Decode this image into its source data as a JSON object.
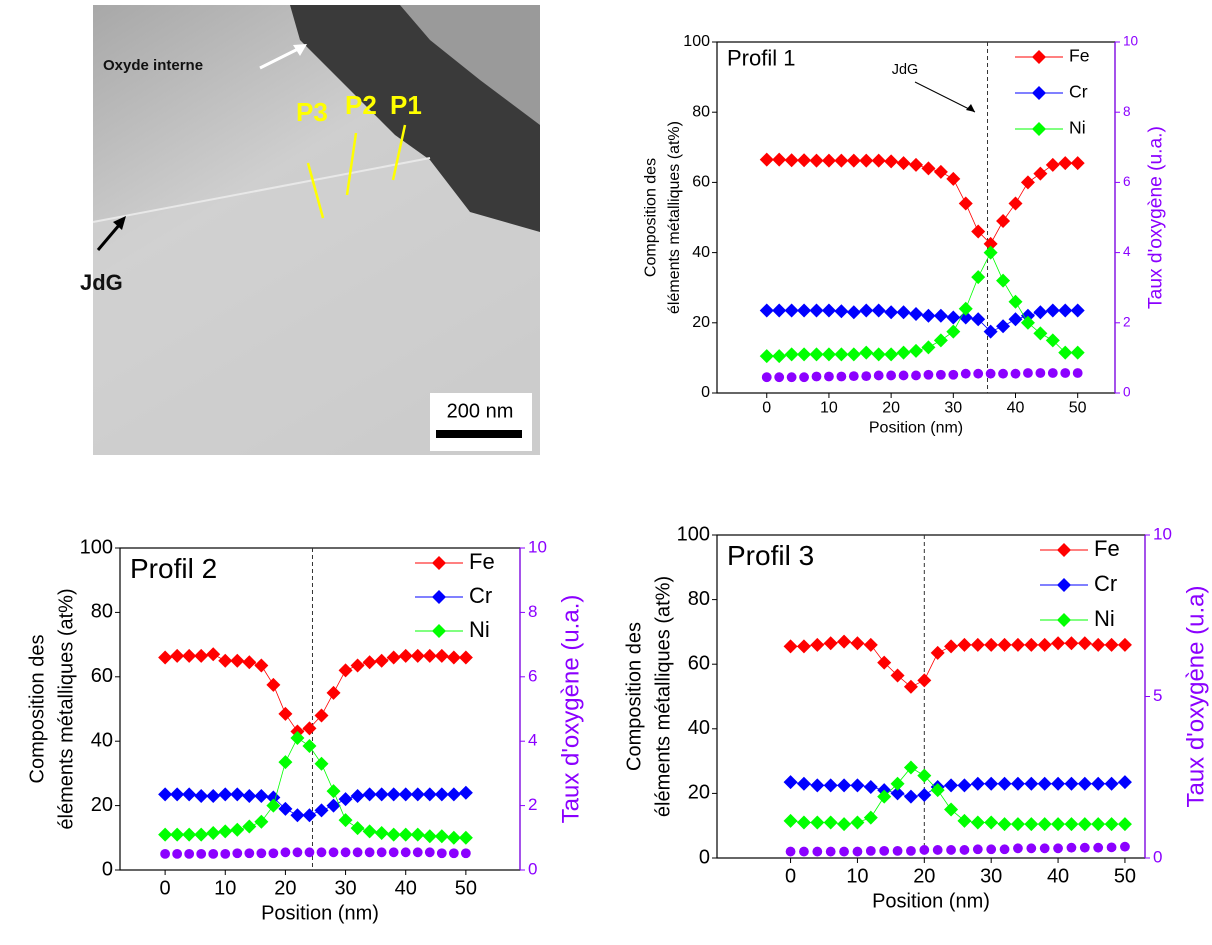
{
  "image": {
    "oxide_label": "Oxyde interne",
    "profiles": [
      "P3",
      "P2",
      "P1"
    ],
    "boundary_label": "JdG",
    "scale_label": "200 nm"
  },
  "chart_data": [
    {
      "type": "line",
      "title": "Profil 1",
      "xlabel": "Position (nm)",
      "ylabel": [
        "Composition des",
        "éléments métalliques (at%)"
      ],
      "y2label": "Taux d'oxygène (u.a.)",
      "annotation": "JdG",
      "jdg_x": 35.5,
      "legend": "upper right",
      "xlim": [
        -8,
        56
      ],
      "xticks": [
        0,
        10,
        20,
        30,
        40,
        50
      ],
      "ylim": [
        0,
        100
      ],
      "yticks": [
        0,
        20,
        40,
        60,
        80,
        100
      ],
      "y2lim": [
        0,
        10
      ],
      "y2ticks": [
        0,
        2,
        4,
        6,
        8,
        10
      ],
      "x": [
        0,
        2,
        4,
        6,
        8,
        10,
        12,
        14,
        16,
        18,
        20,
        22,
        24,
        26,
        28,
        30,
        32,
        34,
        36,
        38,
        40,
        42,
        44,
        46,
        48,
        50
      ],
      "series": [
        {
          "name": "Fe",
          "color": "#ff0000",
          "values": [
            66.5,
            66.5,
            66.3,
            66.3,
            66.2,
            66.2,
            66.2,
            66.2,
            66.2,
            66.2,
            66,
            65.5,
            65,
            64,
            63,
            61,
            54,
            46,
            42.5,
            49,
            54,
            60,
            62.5,
            65,
            65.5,
            65.5
          ]
        },
        {
          "name": "Cr",
          "color": "#0000ff",
          "values": [
            23.5,
            23.5,
            23.5,
            23.5,
            23.5,
            23.5,
            23.3,
            23,
            23.5,
            23.5,
            23,
            23,
            22.5,
            22,
            22,
            21.5,
            21.5,
            21,
            17.5,
            19,
            21,
            22,
            23,
            23.5,
            23.5,
            23.5
          ]
        },
        {
          "name": "Ni",
          "color": "#00ff00",
          "values": [
            10.5,
            10.5,
            11,
            11,
            11,
            11,
            11,
            11,
            11.5,
            11,
            11,
            11.5,
            12,
            13,
            15,
            17.5,
            24,
            33,
            40,
            32,
            26,
            20,
            17,
            15,
            11.5,
            11.5
          ]
        },
        {
          "color": "#8b00ff",
          "axis": "y2",
          "values": [
            0.45,
            0.45,
            0.45,
            0.45,
            0.47,
            0.47,
            0.47,
            0.48,
            0.48,
            0.5,
            0.5,
            0.5,
            0.5,
            0.52,
            0.52,
            0.52,
            0.55,
            0.55,
            0.55,
            0.55,
            0.55,
            0.57,
            0.57,
            0.57,
            0.57,
            0.57
          ]
        }
      ]
    },
    {
      "type": "line",
      "title": "Profil 2",
      "xlabel": "Position (nm)",
      "ylabel": [
        "Composition des",
        "éléments métalliques (at%)"
      ],
      "y2label": "Taux d'oxygène (u.a.)",
      "jdg_x": 24.5,
      "legend": "upper right",
      "xlim": [
        -7.5,
        59
      ],
      "xticks": [
        0,
        10,
        20,
        30,
        40,
        50
      ],
      "ylim": [
        0,
        100
      ],
      "yticks": [
        0,
        20,
        40,
        60,
        80,
        100
      ],
      "y2lim": [
        0,
        10
      ],
      "y2ticks": [
        0,
        2,
        4,
        6,
        8,
        10
      ],
      "x": [
        0,
        2,
        4,
        6,
        8,
        10,
        12,
        14,
        16,
        18,
        20,
        22,
        24,
        26,
        28,
        30,
        32,
        34,
        36,
        38,
        40,
        42,
        44,
        46,
        48,
        50
      ],
      "series": [
        {
          "name": "Fe",
          "color": "#ff0000",
          "values": [
            66,
            66.5,
            66.5,
            66.5,
            67,
            65,
            65,
            64.5,
            63.5,
            57.5,
            48.5,
            43,
            44,
            48,
            55,
            62,
            63.5,
            64.5,
            65,
            66,
            66.5,
            66.5,
            66.5,
            66.5,
            66,
            66
          ]
        },
        {
          "name": "Cr",
          "color": "#0000ff",
          "values": [
            23.5,
            23.5,
            23.5,
            23,
            23,
            23.5,
            23.5,
            23,
            23,
            22.5,
            19,
            17,
            17,
            18.5,
            20,
            22,
            23,
            23.5,
            23.5,
            23.5,
            23.5,
            23.5,
            23.5,
            23.5,
            23.5,
            24
          ]
        },
        {
          "name": "Ni",
          "color": "#00ff00",
          "values": [
            11,
            11,
            11,
            11,
            11.5,
            12,
            12.5,
            13.5,
            15,
            20,
            33.5,
            41,
            38.5,
            33,
            24.5,
            15.5,
            13,
            12,
            11.5,
            11,
            11,
            11,
            10.5,
            10.5,
            10,
            10
          ]
        },
        {
          "color": "#8b00ff",
          "axis": "y2",
          "values": [
            0.5,
            0.5,
            0.5,
            0.5,
            0.5,
            0.5,
            0.52,
            0.52,
            0.52,
            0.52,
            0.55,
            0.55,
            0.55,
            0.55,
            0.55,
            0.55,
            0.55,
            0.55,
            0.55,
            0.55,
            0.55,
            0.55,
            0.55,
            0.52,
            0.52,
            0.52
          ]
        }
      ]
    },
    {
      "type": "line",
      "title": "Profil 3",
      "xlabel": "Position (nm)",
      "ylabel": [
        "Composition des",
        "éléments métalliques (at%)"
      ],
      "y2label": "Taux d'oxygène (u.a)",
      "jdg_x": 20,
      "legend": "upper right",
      "xlim": [
        -11,
        53
      ],
      "xticks": [
        0,
        10,
        20,
        30,
        40,
        50
      ],
      "ylim": [
        0,
        100
      ],
      "yticks": [
        0,
        20,
        40,
        60,
        80,
        100
      ],
      "y2lim": [
        0,
        10
      ],
      "y2ticks": [
        0,
        5,
        10
      ],
      "x": [
        0,
        2,
        4,
        6,
        8,
        10,
        12,
        14,
        16,
        18,
        20,
        22,
        24,
        26,
        28,
        30,
        32,
        34,
        36,
        38,
        40,
        42,
        44,
        46,
        48,
        50
      ],
      "series": [
        {
          "name": "Fe",
          "color": "#ff0000",
          "values": [
            65.5,
            65.5,
            66,
            66.5,
            67,
            66.5,
            66,
            60.5,
            56.5,
            53,
            55,
            63.5,
            65.5,
            66,
            66,
            66,
            66,
            66,
            66,
            66,
            66.5,
            66.5,
            66.5,
            66,
            66,
            66
          ]
        },
        {
          "name": "Cr",
          "color": "#0000ff",
          "values": [
            23.5,
            23,
            22.5,
            22.5,
            22.5,
            22.5,
            22,
            21,
            20,
            19,
            19.5,
            22,
            22.5,
            22.5,
            23,
            23,
            23,
            23,
            23,
            23,
            23,
            23,
            23,
            23,
            23,
            23.5
          ]
        },
        {
          "name": "Ni",
          "color": "#00ff00",
          "values": [
            11.5,
            11,
            11,
            11,
            10.5,
            11,
            12.5,
            19,
            23,
            28,
            25.5,
            21,
            15,
            11.5,
            11,
            11,
            10.5,
            10.5,
            10.5,
            10.5,
            10.5,
            10.5,
            10.5,
            10.5,
            10.5,
            10.5
          ]
        },
        {
          "color": "#8b00ff",
          "axis": "y2",
          "values": [
            0.2,
            0.2,
            0.2,
            0.2,
            0.2,
            0.2,
            0.22,
            0.22,
            0.22,
            0.22,
            0.25,
            0.25,
            0.25,
            0.25,
            0.27,
            0.27,
            0.27,
            0.3,
            0.3,
            0.3,
            0.3,
            0.32,
            0.32,
            0.32,
            0.33,
            0.35
          ]
        }
      ]
    }
  ]
}
